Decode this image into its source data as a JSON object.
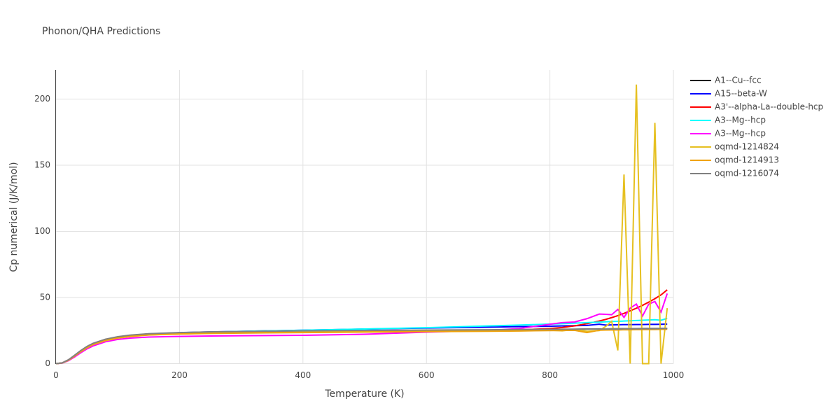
{
  "chart_data": {
    "type": "line",
    "title": "Phonon/QHA Predictions",
    "x_label": "Temperature (K)",
    "y_label": "Cp numerical (J/K/mol)",
    "xlim": [
      0,
      1000
    ],
    "ylim": [
      0,
      222
    ],
    "xticks": [
      0,
      200,
      400,
      600,
      800,
      1000
    ],
    "yticks": [
      0,
      50,
      100,
      150,
      200
    ],
    "grid": true,
    "x": [
      0,
      10,
      20,
      30,
      40,
      50,
      60,
      80,
      100,
      120,
      150,
      200,
      250,
      300,
      400,
      500,
      600,
      700,
      750,
      800,
      820,
      840,
      860,
      880,
      890,
      900,
      910,
      920,
      930,
      940,
      950,
      960,
      970,
      980,
      990
    ],
    "series": [
      {
        "name": "A1--Cu--fcc",
        "color": "#000000",
        "values": [
          0,
          0.5,
          2.6,
          5.8,
          9.2,
          12.3,
          14.7,
          17.8,
          19.7,
          20.9,
          22.0,
          22.9,
          23.4,
          23.7,
          24.2,
          24.6,
          25.0,
          25.4,
          25.6,
          25.8,
          25.9,
          26.0,
          26.1,
          26.2,
          26.2,
          26.3,
          26.3,
          26.4,
          26.4,
          26.4,
          26.5,
          26.5,
          26.5,
          26.6,
          26.6
        ]
      },
      {
        "name": "A15--beta-W",
        "color": "#0000ff",
        "values": [
          0,
          0.5,
          2.7,
          6.0,
          9.5,
          12.6,
          15.0,
          18.2,
          20.2,
          21.4,
          22.5,
          23.4,
          24.0,
          24.4,
          25.3,
          26.1,
          26.9,
          27.6,
          28.0,
          28.3,
          28.5,
          28.7,
          28.9,
          29.8,
          29.2,
          29.3,
          29.4,
          29.5,
          29.5,
          29.6,
          29.6,
          29.7,
          29.7,
          29.8,
          29.9
        ]
      },
      {
        "name": "A3'--alpha-La--double-hcp",
        "color": "#ff0000",
        "values": [
          0,
          0.6,
          2.8,
          6.1,
          9.6,
          12.7,
          15.1,
          18.1,
          20.0,
          21.1,
          22.1,
          22.9,
          23.3,
          23.6,
          24.0,
          24.3,
          24.6,
          25.1,
          25.5,
          26.5,
          27.3,
          28.6,
          30.2,
          32.2,
          33.4,
          34.8,
          36.3,
          38.0,
          39.9,
          41.9,
          44.1,
          46.5,
          49.1,
          52.0,
          55.8
        ]
      },
      {
        "name": "A3--Mg--hcp",
        "color": "#00ffff",
        "values": [
          0,
          0.5,
          2.6,
          5.9,
          9.4,
          12.5,
          14.9,
          18.0,
          20.0,
          21.3,
          22.4,
          23.3,
          23.9,
          24.4,
          25.3,
          26.2,
          27.2,
          28.5,
          29.2,
          29.9,
          30.2,
          30.6,
          31.0,
          31.4,
          31.6,
          31.9,
          32.0,
          32.2,
          32.4,
          32.6,
          32.8,
          33.0,
          33.2,
          32.8,
          34.2
        ]
      },
      {
        "name": "A3--Mg--hcp",
        "color": "#ff00ff",
        "values": [
          0,
          0.4,
          2.2,
          5.0,
          8.2,
          11.1,
          13.4,
          16.5,
          18.3,
          19.3,
          20.1,
          20.6,
          20.9,
          21.1,
          21.4,
          22.2,
          23.8,
          25.1,
          26.5,
          29.8,
          31.0,
          31.5,
          34.0,
          37.5,
          37.3,
          37.0,
          41.0,
          35.0,
          42.0,
          45.0,
          36.0,
          45.0,
          47.0,
          39.0,
          53.0
        ]
      },
      {
        "name": "oqmd-1214824",
        "color": "#e6c020",
        "values": [
          0,
          0.5,
          2.5,
          5.7,
          9.0,
          12.0,
          14.4,
          17.4,
          19.3,
          20.5,
          21.6,
          22.5,
          23.0,
          23.4,
          23.9,
          24.3,
          24.6,
          24.9,
          25.1,
          25.3,
          24.8,
          26.0,
          24.5,
          25.0,
          28.0,
          32.0,
          10.0,
          143.0,
          0,
          211.0,
          0,
          0,
          182.0,
          0,
          42.0
        ]
      },
      {
        "name": "oqmd-1214913",
        "color": "#f0a30a",
        "values": [
          0,
          0.5,
          2.6,
          5.8,
          9.2,
          12.2,
          14.6,
          17.7,
          19.6,
          20.7,
          21.7,
          22.4,
          22.8,
          23.1,
          23.5,
          23.9,
          24.2,
          24.5,
          24.7,
          25.0,
          25.1,
          25.2,
          23.5,
          25.3,
          25.4,
          25.5,
          25.5,
          25.6,
          25.6,
          25.7,
          25.7,
          25.8,
          25.8,
          25.9,
          26.0
        ]
      },
      {
        "name": "oqmd-1216074",
        "color": "#808080",
        "values": [
          0,
          0.6,
          2.9,
          6.3,
          9.9,
          13.0,
          15.4,
          18.5,
          20.4,
          21.6,
          22.6,
          23.5,
          24.0,
          24.3,
          24.8,
          25.1,
          25.4,
          25.6,
          25.8,
          25.9,
          26.0,
          26.0,
          26.1,
          26.1,
          26.2,
          26.2,
          26.2,
          26.3,
          26.3,
          26.3,
          26.4,
          26.4,
          26.4,
          26.5,
          26.5
        ]
      }
    ]
  }
}
